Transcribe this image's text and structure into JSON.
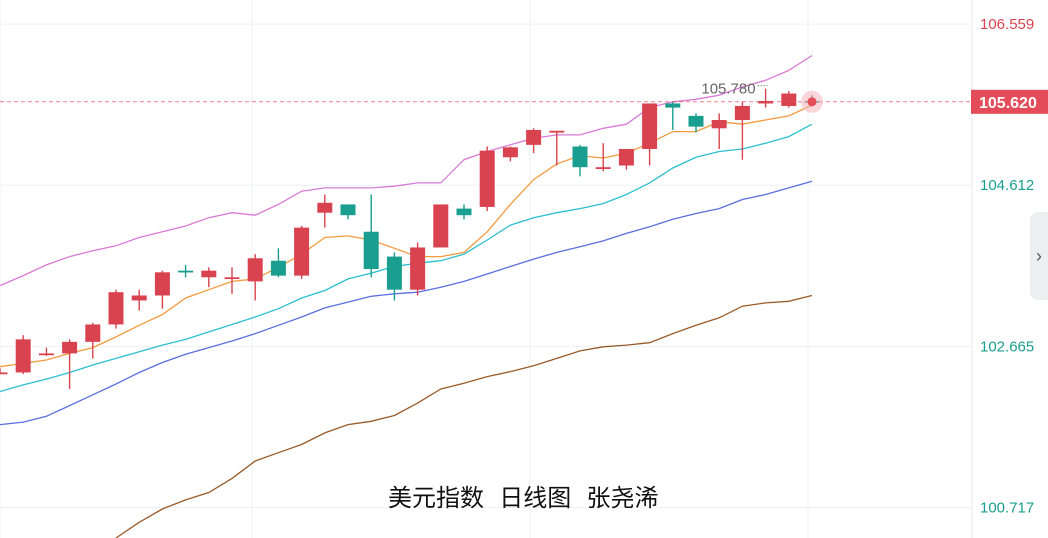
{
  "chart_data": {
    "type": "candlestick",
    "y_axis_labels": [
      "106.559",
      "104.612",
      "102.665",
      "100.717"
    ],
    "ylim": [
      100.35,
      106.85
    ],
    "current_price": "105.620",
    "high_marker": "105.780",
    "caption": "美元指数  日线图  张尧浠",
    "colors": {
      "up": "#d9434f",
      "down": "#1a9e8f",
      "bb_upper": "#d97bd6",
      "ma5": "#f39a3c",
      "ma10": "#2cbfd0",
      "ma20": "#5b6fe0",
      "ma60": "#9a5b2a",
      "price_line": "#e44c5a"
    },
    "candles": [
      {
        "o": 102.35,
        "h": 102.4,
        "l": 102.35,
        "c": 102.35
      },
      {
        "o": 102.35,
        "h": 102.8,
        "l": 102.33,
        "c": 102.75
      },
      {
        "o": 102.58,
        "h": 102.65,
        "l": 102.55,
        "c": 102.58
      },
      {
        "o": 102.58,
        "h": 102.75,
        "l": 102.15,
        "c": 102.72
      },
      {
        "o": 102.72,
        "h": 102.95,
        "l": 102.52,
        "c": 102.93
      },
      {
        "o": 102.93,
        "h": 103.35,
        "l": 102.88,
        "c": 103.32
      },
      {
        "o": 103.22,
        "h": 103.35,
        "l": 103.1,
        "c": 103.28
      },
      {
        "o": 103.28,
        "h": 103.58,
        "l": 103.12,
        "c": 103.56
      },
      {
        "o": 103.58,
        "h": 103.65,
        "l": 103.5,
        "c": 103.56
      },
      {
        "o": 103.5,
        "h": 103.62,
        "l": 103.38,
        "c": 103.58
      },
      {
        "o": 103.5,
        "h": 103.62,
        "l": 103.3,
        "c": 103.5
      },
      {
        "o": 103.45,
        "h": 103.78,
        "l": 103.22,
        "c": 103.73
      },
      {
        "o": 103.7,
        "h": 103.85,
        "l": 103.5,
        "c": 103.52
      },
      {
        "o": 103.52,
        "h": 104.12,
        "l": 103.48,
        "c": 104.1
      },
      {
        "o": 104.28,
        "h": 104.5,
        "l": 104.1,
        "c": 104.4
      },
      {
        "o": 104.38,
        "h": 104.38,
        "l": 104.2,
        "c": 104.25
      },
      {
        "o": 104.05,
        "h": 104.5,
        "l": 103.5,
        "c": 103.6
      },
      {
        "o": 103.75,
        "h": 103.8,
        "l": 103.22,
        "c": 103.35
      },
      {
        "o": 103.35,
        "h": 103.92,
        "l": 103.28,
        "c": 103.86
      },
      {
        "o": 103.86,
        "h": 104.38,
        "l": 103.86,
        "c": 104.38
      },
      {
        "o": 104.33,
        "h": 104.38,
        "l": 104.2,
        "c": 104.25
      },
      {
        "o": 104.35,
        "h": 105.08,
        "l": 104.3,
        "c": 105.03
      },
      {
        "o": 104.95,
        "h": 105.08,
        "l": 104.9,
        "c": 105.07
      },
      {
        "o": 105.1,
        "h": 105.3,
        "l": 105.0,
        "c": 105.28
      },
      {
        "o": 105.27,
        "h": 105.27,
        "l": 104.85,
        "c": 105.27
      },
      {
        "o": 105.08,
        "h": 105.1,
        "l": 104.72,
        "c": 104.83
      },
      {
        "o": 104.83,
        "h": 105.12,
        "l": 104.78,
        "c": 104.83
      },
      {
        "o": 104.85,
        "h": 105.05,
        "l": 104.8,
        "c": 105.05
      },
      {
        "o": 105.05,
        "h": 105.6,
        "l": 104.85,
        "c": 105.6
      },
      {
        "o": 105.6,
        "h": 105.62,
        "l": 105.28,
        "c": 105.55
      },
      {
        "o": 105.45,
        "h": 105.48,
        "l": 105.25,
        "c": 105.32
      },
      {
        "o": 105.3,
        "h": 105.48,
        "l": 105.05,
        "c": 105.4
      },
      {
        "o": 105.4,
        "h": 105.62,
        "l": 104.92,
        "c": 105.57
      },
      {
        "o": 105.6,
        "h": 105.78,
        "l": 105.55,
        "c": 105.63
      },
      {
        "o": 105.57,
        "h": 105.75,
        "l": 105.55,
        "c": 105.72
      },
      {
        "o": 105.63,
        "h": 105.7,
        "l": 105.6,
        "c": 105.62
      }
    ],
    "series": [
      {
        "key": "bb_upper",
        "values": [
          103.4,
          103.52,
          103.65,
          103.75,
          103.82,
          103.88,
          103.98,
          104.05,
          104.12,
          104.22,
          104.28,
          104.25,
          104.38,
          104.54,
          104.58,
          104.58,
          104.58,
          104.6,
          104.64,
          104.64,
          104.92,
          105.02,
          105.1,
          105.18,
          105.22,
          105.22,
          105.3,
          105.35,
          105.55,
          105.62,
          105.65,
          105.7,
          105.8,
          105.88,
          106.0,
          106.18
        ]
      },
      {
        "key": "ma5",
        "values": [
          102.42,
          102.46,
          102.5,
          102.58,
          102.65,
          102.78,
          102.92,
          103.05,
          103.25,
          103.35,
          103.45,
          103.48,
          103.62,
          103.78,
          103.98,
          104.0,
          103.95,
          103.85,
          103.75,
          103.75,
          103.8,
          104.05,
          104.38,
          104.68,
          104.87,
          104.97,
          104.94,
          105.0,
          105.12,
          105.26,
          105.26,
          105.38,
          105.35,
          105.4,
          105.45,
          105.58
        ]
      },
      {
        "key": "ma10",
        "values": [
          102.12,
          102.2,
          102.27,
          102.35,
          102.44,
          102.52,
          102.6,
          102.68,
          102.75,
          102.84,
          102.93,
          103.02,
          103.12,
          103.25,
          103.34,
          103.48,
          103.55,
          103.63,
          103.67,
          103.7,
          103.78,
          103.95,
          104.13,
          104.22,
          104.28,
          104.33,
          104.39,
          104.5,
          104.64,
          104.82,
          104.95,
          105.02,
          105.05,
          105.12,
          105.2,
          105.35
        ]
      },
      {
        "key": "ma20",
        "values": [
          101.72,
          101.75,
          101.82,
          101.95,
          102.08,
          102.21,
          102.35,
          102.47,
          102.57,
          102.65,
          102.73,
          102.82,
          102.92,
          103.02,
          103.13,
          103.2,
          103.27,
          103.3,
          103.32,
          103.38,
          103.45,
          103.54,
          103.63,
          103.72,
          103.8,
          103.87,
          103.94,
          104.03,
          104.11,
          104.2,
          104.27,
          104.33,
          104.44,
          104.5,
          104.58,
          104.66
        ]
      },
      {
        "key": "ma60",
        "values": [
          null,
          null,
          null,
          null,
          null,
          100.35,
          100.54,
          100.7,
          100.81,
          100.9,
          101.07,
          101.28,
          101.38,
          101.48,
          101.62,
          101.72,
          101.76,
          101.83,
          101.98,
          102.15,
          102.22,
          102.3,
          102.36,
          102.43,
          102.52,
          102.61,
          102.66,
          102.68,
          102.71,
          102.82,
          102.92,
          103.01,
          103.15,
          103.19,
          103.21,
          103.28
        ]
      }
    ]
  }
}
